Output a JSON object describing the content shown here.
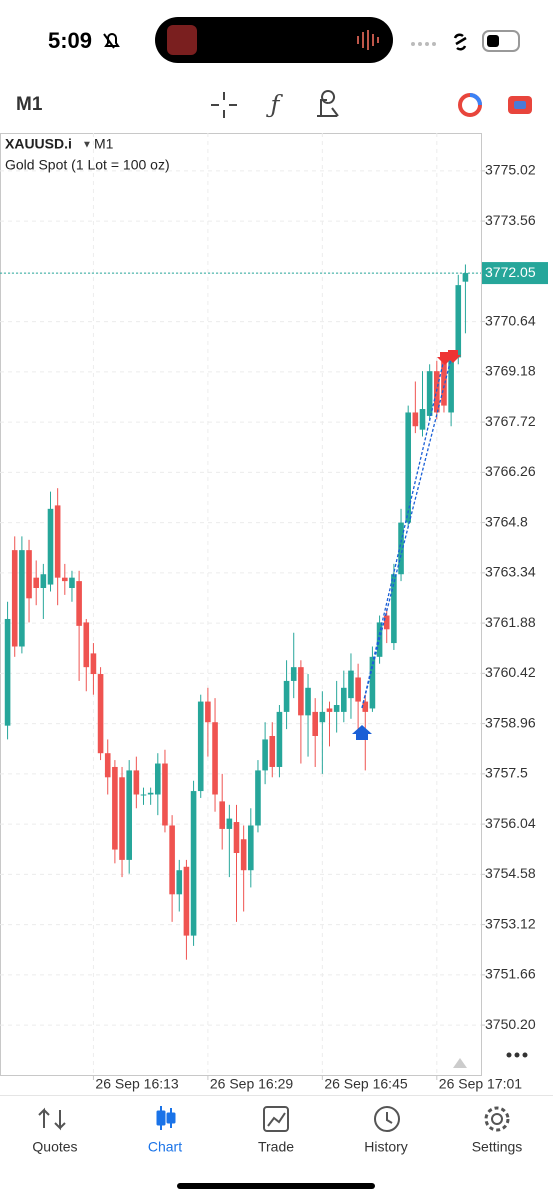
{
  "status": {
    "time": "5:09"
  },
  "toolbar": {
    "timeframe": "M1"
  },
  "chart_data": {
    "type": "candlestick",
    "symbol": "XAUUSD.i",
    "timeframe": "M1",
    "description": "Gold Spot (1 Lot = 100 oz)",
    "up_color": "#26a69a",
    "down_color": "#ef5350",
    "grid": true,
    "ylim": [
      3748.75,
      3776.12
    ],
    "yticks": [
      3775.02,
      3773.56,
      3772.05,
      3770.64,
      3769.18,
      3767.72,
      3766.26,
      3764.8,
      3763.34,
      3761.88,
      3760.42,
      3758.96,
      3757.5,
      3756.04,
      3754.58,
      3753.12,
      3751.66,
      {
        "value": 3750.2,
        "label": "3750.20"
      }
    ],
    "ytick_labels_fix": null,
    "xlim": [
      -0.5,
      64.5
    ],
    "xticks": [
      {
        "value": 12,
        "label": "26 Sep 16:13"
      },
      {
        "value": 28,
        "label": "26 Sep 16:29"
      },
      {
        "value": 44,
        "label": "26 Sep 16:45"
      },
      {
        "value": 60,
        "label": "26 Sep 17:01"
      }
    ],
    "current_price": 3772.05,
    "open": [
      3758.9,
      3764.0,
      3761.2,
      3764.0,
      3763.2,
      3762.9,
      3763.0,
      3765.3,
      3763.2,
      3762.9,
      3763.1,
      3761.9,
      3761.0,
      3760.4,
      3758.1,
      3757.7,
      3757.4,
      3755.0,
      3757.6,
      3756.9,
      3756.9,
      3756.9,
      3757.8,
      3756.0,
      3754.0,
      3754.8,
      3752.8,
      3757.0,
      3759.6,
      3759.0,
      3756.7,
      3755.9,
      3756.1,
      3755.6,
      3754.7,
      3756.0,
      3757.6,
      3758.6,
      3757.7,
      3759.3,
      3760.2,
      3760.6,
      3759.2,
      3759.3,
      3759.0,
      3759.4,
      3759.3,
      3759.3,
      3759.7,
      3760.3,
      3759.6,
      3759.4,
      3760.9,
      3762.1,
      3761.3,
      3763.3,
      3764.8,
      3768.0,
      3767.5,
      3767.9,
      3769.2,
      3769.5,
      3768.0,
      3769.6,
      3771.8
    ],
    "high": [
      3762.5,
      3764.4,
      3764.4,
      3764.3,
      3763.7,
      3763.6,
      3765.7,
      3765.8,
      3763.6,
      3763.4,
      3763.4,
      3762.0,
      3761.3,
      3760.6,
      3758.5,
      3757.9,
      3757.7,
      3757.9,
      3758.0,
      3757.1,
      3757.1,
      3758.1,
      3758.2,
      3756.3,
      3755.0,
      3755.0,
      3757.3,
      3759.8,
      3760.0,
      3759.7,
      3757.5,
      3756.6,
      3756.6,
      3756.0,
      3756.5,
      3757.9,
      3759.0,
      3759.0,
      3759.5,
      3760.8,
      3761.6,
      3760.8,
      3760.4,
      3759.7,
      3759.9,
      3759.6,
      3760.2,
      3760.5,
      3761.0,
      3760.7,
      3759.8,
      3761.2,
      3762.1,
      3762.3,
      3763.6,
      3765.2,
      3768.2,
      3768.9,
      3769.2,
      3769.4,
      3769.5,
      3769.7,
      3769.8,
      3772.0,
      3772.3
    ],
    "low": [
      3758.5,
      3760.9,
      3761.0,
      3761.9,
      3762.4,
      3762.0,
      3762.8,
      3762.4,
      3762.7,
      3762.5,
      3760.2,
      3759.9,
      3759.8,
      3757.9,
      3756.9,
      3754.9,
      3754.5,
      3754.6,
      3756.5,
      3756.6,
      3756.6,
      3756.3,
      3755.8,
      3753.2,
      3753.5,
      3752.1,
      3752.5,
      3756.8,
      3758.0,
      3756.4,
      3755.3,
      3754.5,
      3753.2,
      3753.5,
      3754.2,
      3755.8,
      3757.2,
      3757.4,
      3757.4,
      3758.8,
      3759.7,
      3757.8,
      3758.0,
      3757.7,
      3757.5,
      3758.3,
      3758.7,
      3759.0,
      3759.1,
      3758.8,
      3757.6,
      3759.3,
      3760.7,
      3761.3,
      3761.1,
      3763.1,
      3764.7,
      3767.4,
      3767.3,
      3767.8,
      3767.8,
      3768.0,
      3767.6,
      3769.4,
      3770.3
    ],
    "close": [
      3762.0,
      3761.2,
      3764.0,
      3762.6,
      3762.9,
      3763.3,
      3765.2,
      3763.2,
      3763.1,
      3763.2,
      3761.8,
      3760.6,
      3760.4,
      3758.1,
      3757.4,
      3755.3,
      3755.0,
      3757.6,
      3756.9,
      3756.9,
      3756.95,
      3757.8,
      3756.0,
      3754.0,
      3754.7,
      3752.8,
      3757.0,
      3759.6,
      3759.0,
      3756.9,
      3755.9,
      3756.2,
      3755.2,
      3754.7,
      3756.0,
      3757.6,
      3758.5,
      3757.7,
      3759.3,
      3760.2,
      3760.6,
      3759.2,
      3760.0,
      3758.6,
      3759.3,
      3759.3,
      3759.5,
      3760.0,
      3760.5,
      3759.6,
      3759.3,
      3760.9,
      3761.9,
      3761.7,
      3763.3,
      3764.8,
      3768.0,
      3767.6,
      3768.1,
      3769.2,
      3768.0,
      3768.2,
      3769.6,
      3771.7,
      3772.05
    ]
  },
  "tabs": [
    "Quotes",
    "Chart",
    "Trade",
    "History",
    "Settings"
  ]
}
